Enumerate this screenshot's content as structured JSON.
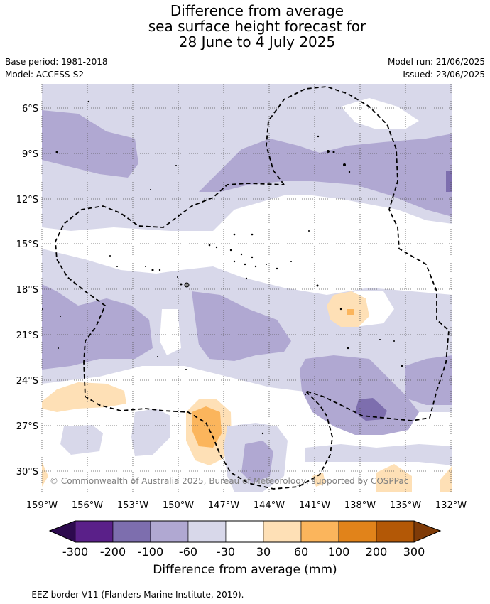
{
  "title": {
    "line1": "Difference from average",
    "line2": "sea surface height forecast for",
    "line3": "28 June to 4 July 2025"
  },
  "meta": {
    "base_period": "Base period: 1981-2018",
    "model": "Model: ACCESS-S2",
    "model_run": "Model run: 21/06/2025",
    "issued": "Issued: 23/06/2025"
  },
  "map": {
    "lat_labels": [
      "6°S",
      "9°S",
      "12°S",
      "15°S",
      "18°S",
      "21°S",
      "24°S",
      "27°S",
      "30°S"
    ],
    "lon_labels": [
      "159°W",
      "156°W",
      "153°W",
      "150°W",
      "147°W",
      "144°W",
      "141°W",
      "138°W",
      "135°W",
      "132°W"
    ],
    "copyright": "© Commonwealth of Australia 2025, Bureau of Meteorology, supported by COSPPac"
  },
  "colorbar": {
    "ticks": [
      "-300",
      "-200",
      "-100",
      "-60",
      "-30",
      "30",
      "60",
      "100",
      "200",
      "300"
    ],
    "colors": [
      "#2d0a4e",
      "#5a2089",
      "#7d6eae",
      "#b0a8d2",
      "#d8d8ea",
      "#ffffff",
      "#fee0b6",
      "#fbb55c",
      "#e1831a",
      "#b35806",
      "#7f3b08"
    ],
    "title": "Difference from average (mm)"
  },
  "legend": {
    "eez": "--  --  -- EEZ border V11 (Flanders Marine Institute, 2019)."
  }
}
